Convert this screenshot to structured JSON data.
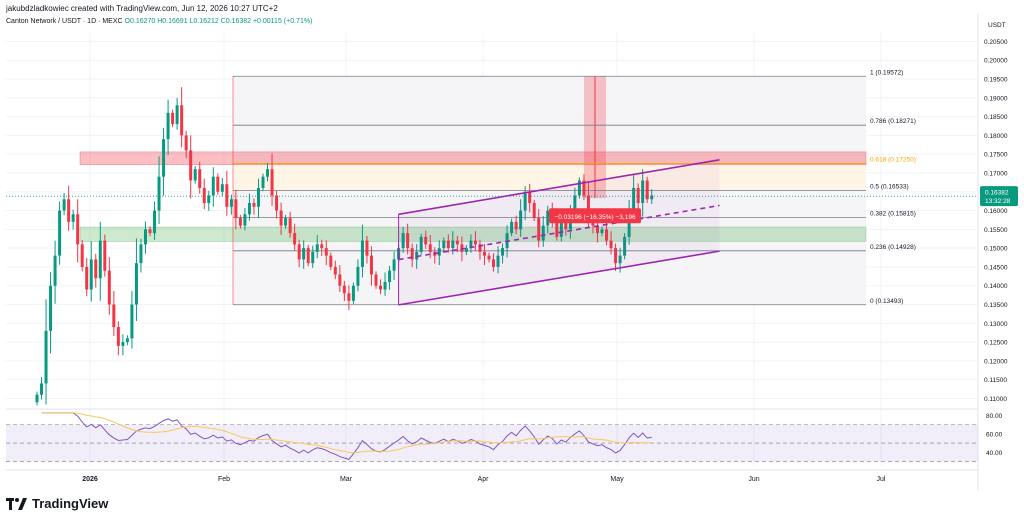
{
  "header": {
    "creator_line": "jakubdzladkowiec created with TradingView.com, Jun 12, 2026 10:27 UTC+2",
    "symbol_line": "Canton Network / USDT · 1D · MEXC",
    "ohlc_line": "O0.16270  H0.16691  L0.16212  C0.16382  +0.00115 (+0.71%)"
  },
  "footer": {
    "logo_text": "TradingView"
  },
  "price_axis": {
    "currency": "USDT",
    "ticks": [
      "0.20500",
      "0.20000",
      "0.19500",
      "0.19000",
      "0.18500",
      "0.18000",
      "0.17500",
      "0.17000",
      "0.16500",
      "0.16000",
      "0.15500",
      "0.15000",
      "0.14500",
      "0.14000",
      "0.13500",
      "0.13000",
      "0.12500",
      "0.12000",
      "0.11500",
      "0.11000"
    ],
    "last_price_label": "0.16382",
    "countdown_label": "13:32:28"
  },
  "rsi_axis": {
    "ticks": [
      "80.00",
      "60.00",
      "40.00"
    ]
  },
  "time_axis": {
    "labels": [
      "2026",
      "Feb",
      "Mar",
      "Apr",
      "May",
      "Jun",
      "Jul"
    ]
  },
  "fib_levels": [
    {
      "label": "1 (0.19572)",
      "value": 0.19572,
      "color": "#787b86"
    },
    {
      "label": "0.786 (0.18271)",
      "value": 0.18271,
      "color": "#787b86"
    },
    {
      "label": "0.618 (0.17250)",
      "value": 0.1725,
      "color": "#f7a600"
    },
    {
      "label": "0.5 (0.16533)",
      "value": 0.16533,
      "color": "#787b86"
    },
    {
      "label": "0.382 (0.15815)",
      "value": 0.15815,
      "color": "#787b86"
    },
    {
      "label": "0.236 (0.14928)",
      "value": 0.14928,
      "color": "#787b86"
    },
    {
      "label": "0 (0.13493)",
      "value": 0.13493,
      "color": "#787b86"
    }
  ],
  "measure_label": "−0.03196 (−16.35%) −3,196",
  "chart_data": {
    "type": "candlestick",
    "series_name": "Canton Network / USDT · 1D · MEXC",
    "y_axis": {
      "min": 0.108,
      "max": 0.2075,
      "ticks": [
        0.205,
        0.2,
        0.195,
        0.19,
        0.185,
        0.18,
        0.175,
        0.17,
        0.165,
        0.16,
        0.155,
        0.15,
        0.145,
        0.14,
        0.135,
        0.13,
        0.125,
        0.12,
        0.115,
        0.11
      ]
    },
    "x_labels": [
      "2026",
      "Feb",
      "Mar",
      "Apr",
      "May",
      "Jun",
      "Jul"
    ],
    "closes": [
      0.111,
      0.114,
      0.128,
      0.14,
      0.148,
      0.16,
      0.163,
      0.157,
      0.159,
      0.151,
      0.145,
      0.139,
      0.147,
      0.142,
      0.152,
      0.144,
      0.135,
      0.129,
      0.124,
      0.125,
      0.126,
      0.135,
      0.146,
      0.151,
      0.155,
      0.154,
      0.16,
      0.169,
      0.179,
      0.186,
      0.183,
      0.188,
      0.18,
      0.176,
      0.168,
      0.171,
      0.166,
      0.162,
      0.164,
      0.169,
      0.165,
      0.167,
      0.161,
      0.163,
      0.158,
      0.156,
      0.159,
      0.162,
      0.161,
      0.166,
      0.169,
      0.171,
      0.164,
      0.16,
      0.156,
      0.158,
      0.154,
      0.151,
      0.147,
      0.15,
      0.146,
      0.149,
      0.151,
      0.15,
      0.148,
      0.145,
      0.143,
      0.14,
      0.138,
      0.136,
      0.14,
      0.145,
      0.152,
      0.148,
      0.143,
      0.14,
      0.139,
      0.141,
      0.144,
      0.147,
      0.15,
      0.154,
      0.15,
      0.147,
      0.149,
      0.153,
      0.151,
      0.149,
      0.148,
      0.15,
      0.152,
      0.15,
      0.152,
      0.151,
      0.149,
      0.15,
      0.152,
      0.151,
      0.149,
      0.148,
      0.147,
      0.145,
      0.148,
      0.15,
      0.154,
      0.157,
      0.155,
      0.16,
      0.165,
      0.162,
      0.158,
      0.152,
      0.156,
      0.16,
      0.158,
      0.153,
      0.157,
      0.155,
      0.16,
      0.164,
      0.168,
      0.164,
      0.158,
      0.156,
      0.154,
      0.155,
      0.152,
      0.15,
      0.146,
      0.148,
      0.153,
      0.16,
      0.166,
      0.162,
      0.168,
      0.163,
      0.164
    ],
    "fibonacci": [
      {
        "level": 1,
        "price": 0.19572
      },
      {
        "level": 0.786,
        "price": 0.18271
      },
      {
        "level": 0.618,
        "price": 0.1725
      },
      {
        "level": 0.5,
        "price": 0.16533
      },
      {
        "level": 0.382,
        "price": 0.15815
      },
      {
        "level": 0.236,
        "price": 0.14928
      },
      {
        "level": 0,
        "price": 0.13493
      }
    ],
    "zones": [
      {
        "kind": "resistance",
        "low": 0.1722,
        "high": 0.1756,
        "color": "#f23645"
      },
      {
        "kind": "support",
        "low": 0.1518,
        "high": 0.1556,
        "color": "#4caf50"
      }
    ],
    "channel": {
      "upper": [
        {
          "bar": 80,
          "price": 0.159
        },
        {
          "bar": 151,
          "price": 0.1735
        }
      ],
      "lower": [
        {
          "bar": 80,
          "price": 0.1349
        },
        {
          "bar": 151,
          "price": 0.1492
        }
      ]
    },
    "measure": {
      "change": -0.03196,
      "percent": -16.35
    },
    "rsi": {
      "levels": [
        70,
        50,
        30
      ],
      "axis_range": [
        25,
        85
      ]
    },
    "last_price": 0.16382,
    "colors": {
      "up": "#089981",
      "down": "#f23645",
      "channel": "#9c27b0",
      "rsi": "#7e57c2",
      "rsi_ma": "#f7c85a"
    }
  }
}
